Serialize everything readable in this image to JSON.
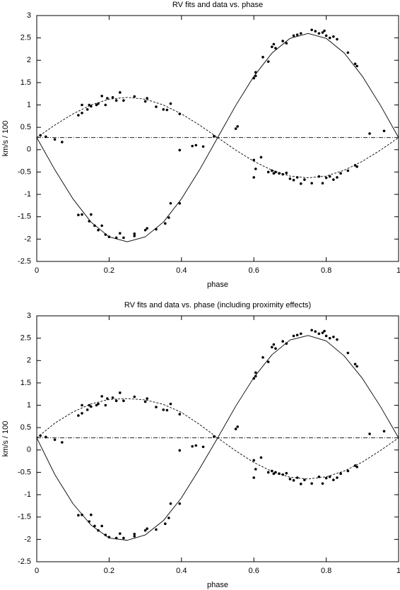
{
  "chart_data": [
    {
      "type": "line",
      "title": "RV fits and data vs. phase",
      "xlabel": "phase",
      "ylabel": "km/s / 100",
      "xlim": [
        0,
        1
      ],
      "ylim": [
        -2.5,
        3
      ],
      "xticks": [
        0,
        0.2,
        0.4,
        0.6,
        0.8,
        1
      ],
      "yticks": [
        -2.5,
        -2,
        -1.5,
        -1,
        -0.5,
        0,
        0.5,
        1,
        1.5,
        2,
        2.5,
        3
      ],
      "color": "#000000",
      "series": [
        {
          "style": "solid",
          "x": [
            0,
            0.05,
            0.1,
            0.15,
            0.2,
            0.25,
            0.3,
            0.35,
            0.4,
            0.45,
            0.5,
            0.55,
            0.6,
            0.65,
            0.7,
            0.75,
            0.8,
            0.85,
            0.9,
            0.95,
            1
          ],
          "values": [
            0.27,
            -0.45,
            -1.1,
            -1.62,
            -1.95,
            -2.06,
            -1.95,
            -1.62,
            -1.1,
            -0.45,
            0.27,
            0.99,
            1.64,
            2.16,
            2.49,
            2.6,
            2.49,
            2.16,
            1.64,
            0.99,
            0.27
          ]
        },
        {
          "style": "dashed",
          "x": [
            0,
            0.05,
            0.1,
            0.15,
            0.2,
            0.25,
            0.3,
            0.35,
            0.4,
            0.45,
            0.5,
            0.55,
            0.6,
            0.65,
            0.7,
            0.75,
            0.8,
            0.85,
            0.9,
            0.95,
            1
          ],
          "values": [
            0.27,
            0.55,
            0.8,
            1.0,
            1.13,
            1.17,
            1.13,
            1.0,
            0.8,
            0.55,
            0.27,
            -0.01,
            -0.26,
            -0.46,
            -0.59,
            -0.63,
            -0.59,
            -0.46,
            -0.26,
            -0.01,
            0.27
          ]
        },
        {
          "style": "dashdot",
          "x": [
            0,
            1
          ],
          "values": [
            0.27,
            0.27
          ]
        },
        {
          "style": "points",
          "x": [
            0.01,
            0.025,
            0.05,
            0.07,
            0.115,
            0.125,
            0.145,
            0.15,
            0.16,
            0.17,
            0.18,
            0.19,
            0.2,
            0.22,
            0.23,
            0.24,
            0.27,
            0.27,
            0.3,
            0.305,
            0.33,
            0.355,
            0.365,
            0.37,
            0.395,
            0.115,
            0.125,
            0.125,
            0.14,
            0.145,
            0.15,
            0.165,
            0.17,
            0.18,
            0.19,
            0.195,
            0.21,
            0.22,
            0.23,
            0.24,
            0.27,
            0.3,
            0.305,
            0.33,
            0.35,
            0.36,
            0.37,
            0.395,
            0.395,
            0.43,
            0.44,
            0.46,
            0.49,
            0.55,
            0.555,
            0.6,
            0.6,
            0.605,
            0.62,
            0.6,
            0.605,
            0.605,
            0.625,
            0.64,
            0.65,
            0.655,
            0.66,
            0.68,
            0.69,
            0.71,
            0.72,
            0.73,
            0.76,
            0.77,
            0.78,
            0.79,
            0.795,
            0.8,
            0.81,
            0.82,
            0.83,
            0.86,
            0.88,
            0.885,
            0.92,
            0.96,
            0.64,
            0.65,
            0.655,
            0.66,
            0.67,
            0.68,
            0.69,
            0.7,
            0.71,
            0.72,
            0.73,
            0.74,
            0.76,
            0.78,
            0.79,
            0.8,
            0.81,
            0.82,
            0.83,
            0.84,
            0.86,
            0.88,
            0.885
          ],
          "values": [
            0.32,
            0.29,
            0.23,
            0.17,
            -1.46,
            -1.45,
            -1.6,
            -1.45,
            -1.7,
            -1.8,
            -1.7,
            -1.9,
            -1.95,
            -1.97,
            -1.87,
            -1.97,
            -1.93,
            -1.88,
            -1.8,
            -1.76,
            -1.78,
            -1.65,
            -1.52,
            -1.2,
            -1.2,
            0.77,
            0.82,
            1.0,
            0.9,
            1.0,
            0.97,
            1.0,
            1.03,
            1.2,
            1.0,
            1.15,
            1.17,
            1.1,
            1.28,
            1.1,
            1.19,
            1.08,
            1.15,
            0.96,
            0.9,
            0.89,
            1.03,
            0.8,
            -0.01,
            0.08,
            0.1,
            0.07,
            0.3,
            0.47,
            0.52,
            -0.23,
            -0.62,
            -0.43,
            -0.17,
            1.6,
            1.65,
            1.73,
            2.07,
            1.97,
            2.3,
            2.36,
            2.27,
            2.43,
            2.38,
            2.55,
            2.57,
            2.6,
            2.68,
            2.65,
            2.6,
            2.62,
            2.66,
            2.55,
            2.5,
            2.53,
            2.47,
            2.17,
            1.92,
            1.87,
            0.36,
            0.42,
            -0.5,
            -0.47,
            -0.53,
            -0.5,
            -0.53,
            -0.55,
            -0.52,
            -0.65,
            -0.68,
            -0.62,
            -0.76,
            -0.67,
            -0.75,
            -0.6,
            -0.75,
            -0.63,
            -0.6,
            -0.67,
            -0.62,
            -0.53,
            -0.47,
            -0.35,
            -0.38
          ]
        }
      ]
    },
    {
      "type": "line",
      "title": "RV fits and data vs. phase (including proximity effects)",
      "xlabel": "phase",
      "ylabel": "km/s / 100",
      "xlim": [
        0,
        1
      ],
      "ylim": [
        -2.5,
        3
      ],
      "xticks": [
        0,
        0.2,
        0.4,
        0.6,
        0.8,
        1
      ],
      "yticks": [
        -2.5,
        -2,
        -1.5,
        -1,
        -0.5,
        0,
        0.5,
        1,
        1.5,
        2,
        2.5,
        3
      ],
      "color": "#000000",
      "series": [
        {
          "style": "solid",
          "x": [
            0,
            0.05,
            0.1,
            0.15,
            0.2,
            0.25,
            0.3,
            0.35,
            0.4,
            0.45,
            0.5,
            0.55,
            0.6,
            0.65,
            0.7,
            0.75,
            0.8,
            0.85,
            0.9,
            0.95,
            1
          ],
          "values": [
            0.27,
            -0.55,
            -1.2,
            -1.68,
            -1.97,
            -2.02,
            -1.9,
            -1.58,
            -1.07,
            -0.42,
            0.27,
            0.98,
            1.62,
            2.13,
            2.46,
            2.56,
            2.44,
            2.1,
            1.6,
            0.97,
            0.27
          ]
        },
        {
          "style": "dashed",
          "x": [
            0,
            0.05,
            0.1,
            0.15,
            0.2,
            0.25,
            0.3,
            0.35,
            0.4,
            0.45,
            0.5,
            0.55,
            0.6,
            0.65,
            0.7,
            0.75,
            0.8,
            0.85,
            0.9,
            0.95,
            1
          ],
          "values": [
            0.27,
            0.6,
            0.85,
            1.03,
            1.13,
            1.15,
            1.12,
            1.02,
            0.84,
            0.57,
            0.27,
            -0.02,
            -0.28,
            -0.48,
            -0.61,
            -0.65,
            -0.6,
            -0.47,
            -0.27,
            -0.01,
            0.27
          ]
        },
        {
          "style": "dashdot",
          "x": [
            0,
            1
          ],
          "values": [
            0.27,
            0.27
          ]
        },
        {
          "style": "points",
          "x": [
            0.01,
            0.025,
            0.05,
            0.07,
            0.115,
            0.125,
            0.145,
            0.15,
            0.16,
            0.17,
            0.18,
            0.19,
            0.2,
            0.22,
            0.23,
            0.24,
            0.27,
            0.27,
            0.3,
            0.305,
            0.33,
            0.355,
            0.365,
            0.37,
            0.395,
            0.115,
            0.125,
            0.125,
            0.14,
            0.145,
            0.15,
            0.165,
            0.17,
            0.18,
            0.19,
            0.195,
            0.21,
            0.22,
            0.23,
            0.24,
            0.27,
            0.3,
            0.305,
            0.33,
            0.35,
            0.36,
            0.37,
            0.395,
            0.395,
            0.43,
            0.44,
            0.46,
            0.49,
            0.55,
            0.555,
            0.6,
            0.6,
            0.605,
            0.62,
            0.6,
            0.605,
            0.605,
            0.625,
            0.64,
            0.65,
            0.655,
            0.66,
            0.68,
            0.69,
            0.71,
            0.72,
            0.73,
            0.76,
            0.77,
            0.78,
            0.79,
            0.795,
            0.8,
            0.81,
            0.82,
            0.83,
            0.86,
            0.88,
            0.885,
            0.92,
            0.96,
            0.64,
            0.65,
            0.655,
            0.66,
            0.67,
            0.68,
            0.69,
            0.7,
            0.71,
            0.72,
            0.73,
            0.74,
            0.76,
            0.78,
            0.79,
            0.8,
            0.81,
            0.82,
            0.83,
            0.84,
            0.86,
            0.88,
            0.885
          ],
          "values": [
            0.32,
            0.29,
            0.23,
            0.17,
            -1.46,
            -1.45,
            -1.6,
            -1.45,
            -1.7,
            -1.8,
            -1.7,
            -1.9,
            -1.95,
            -1.97,
            -1.87,
            -1.97,
            -1.93,
            -1.88,
            -1.8,
            -1.76,
            -1.78,
            -1.65,
            -1.52,
            -1.2,
            -1.2,
            0.77,
            0.82,
            1.0,
            0.9,
            1.0,
            0.97,
            1.0,
            1.03,
            1.2,
            1.0,
            1.15,
            1.17,
            1.1,
            1.28,
            1.1,
            1.19,
            1.08,
            1.15,
            0.96,
            0.9,
            0.89,
            1.03,
            0.8,
            -0.01,
            0.08,
            0.1,
            0.07,
            0.3,
            0.47,
            0.52,
            -0.23,
            -0.62,
            -0.43,
            -0.17,
            1.6,
            1.65,
            1.73,
            2.07,
            1.97,
            2.3,
            2.36,
            2.27,
            2.43,
            2.38,
            2.55,
            2.57,
            2.6,
            2.68,
            2.65,
            2.6,
            2.62,
            2.66,
            2.55,
            2.5,
            2.53,
            2.47,
            2.17,
            1.92,
            1.87,
            0.36,
            0.42,
            -0.5,
            -0.47,
            -0.53,
            -0.5,
            -0.53,
            -0.55,
            -0.52,
            -0.65,
            -0.68,
            -0.62,
            -0.76,
            -0.67,
            -0.75,
            -0.6,
            -0.75,
            -0.63,
            -0.6,
            -0.67,
            -0.62,
            -0.53,
            -0.47,
            -0.35,
            -0.38
          ]
        }
      ]
    }
  ]
}
